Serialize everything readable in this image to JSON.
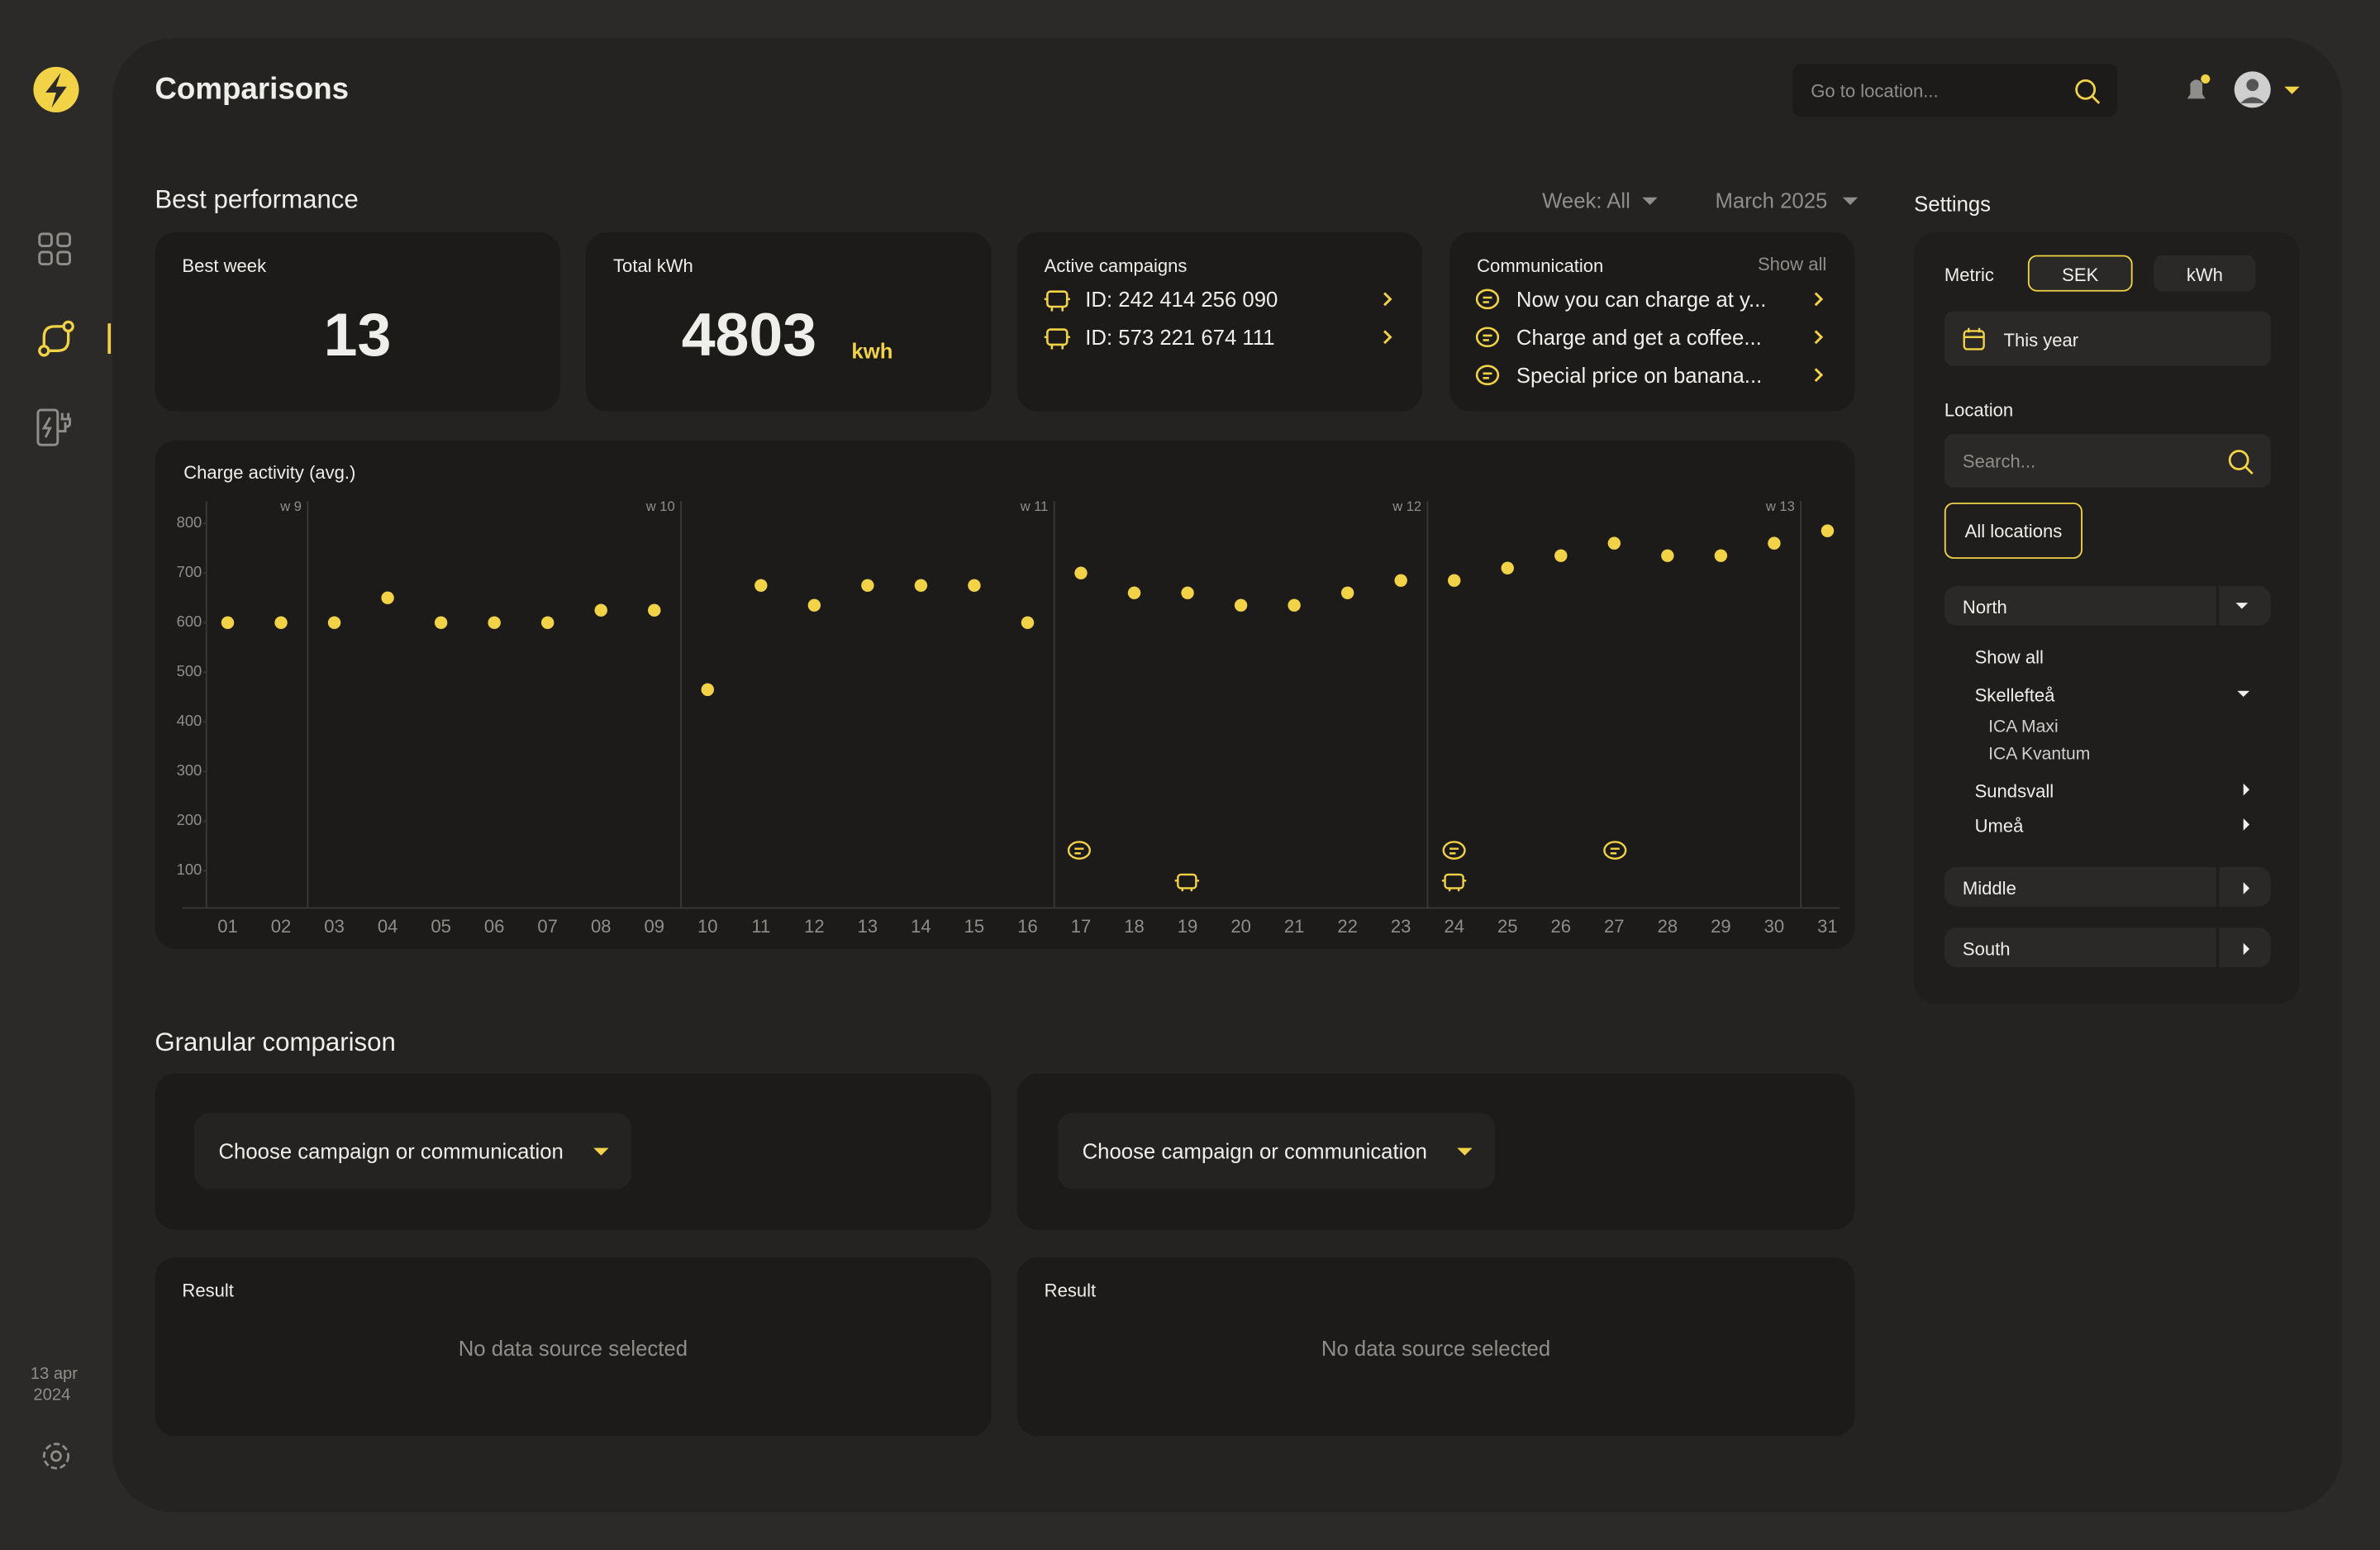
{
  "sidebar": {
    "date_day": "13 apr",
    "date_year": "2024"
  },
  "header": {
    "title": "Comparisons",
    "search_placeholder": "Go to location..."
  },
  "best_performance": {
    "title": "Best performance",
    "week_filter": "Week: All",
    "month_filter": "March 2025",
    "best_week": {
      "label": "Best week",
      "value": 13
    },
    "total_kwh": {
      "label": "Total kWh",
      "value": 4803,
      "unit": "kwh"
    },
    "campaigns": {
      "label": "Active campaigns",
      "items": [
        "ID: 242 414 256 090",
        "ID: 573 221 674 111"
      ]
    },
    "communication": {
      "label": "Communication",
      "action": "Show all",
      "items": [
        "Now you can charge at y...",
        "Charge and get a coffee...",
        "Special price on banana..."
      ]
    }
  },
  "chart_data": {
    "type": "scatter",
    "title": "Charge activity (avg.)",
    "categories": [
      "01",
      "02",
      "03",
      "04",
      "05",
      "06",
      "07",
      "08",
      "09",
      "10",
      "11",
      "12",
      "13",
      "14",
      "15",
      "16",
      "17",
      "18",
      "19",
      "20",
      "21",
      "22",
      "23",
      "24",
      "25",
      "26",
      "27",
      "28",
      "29",
      "30",
      "31"
    ],
    "values": [
      600,
      600,
      600,
      650,
      600,
      600,
      600,
      625,
      625,
      465,
      675,
      635,
      675,
      675,
      675,
      600,
      700,
      660,
      660,
      635,
      635,
      660,
      685,
      685,
      710,
      735,
      760,
      735,
      735,
      760,
      785
    ],
    "color": "#f2d348",
    "ylim": [
      25,
      845
    ],
    "yticks": [
      100,
      200,
      300,
      400,
      500,
      600,
      700,
      800
    ],
    "week_lines": [
      {
        "label": "w 9",
        "day": "03"
      },
      {
        "label": "w 10",
        "day": "10"
      },
      {
        "label": "w 11",
        "day": "17"
      },
      {
        "label": "w 12",
        "day": "24"
      },
      {
        "label": "w 13",
        "day": "31"
      }
    ]
  },
  "granular": {
    "title": "Granular comparison",
    "select_left": "Choose campaign or communication",
    "select_right": "Choose campaign or communication",
    "result_left": {
      "label": "Result",
      "empty": "No data source selected"
    },
    "result_right": {
      "label": "Result",
      "empty": "No data source selected"
    }
  },
  "settings": {
    "title": "Settings",
    "metric_label": "Metric",
    "metric_options": [
      "SEK",
      "kWh"
    ],
    "period": "This year",
    "location_label": "Location",
    "search_placeholder": "Search...",
    "all_locations": "All locations",
    "regions": [
      "North",
      "Middle",
      "South"
    ],
    "show_all": "Show all",
    "north_cities": [
      "Skellefteå",
      "Sundsvall",
      "Umeå"
    ],
    "skelleftea_stores": [
      "ICA Maxi",
      "ICA Kvantum"
    ]
  }
}
